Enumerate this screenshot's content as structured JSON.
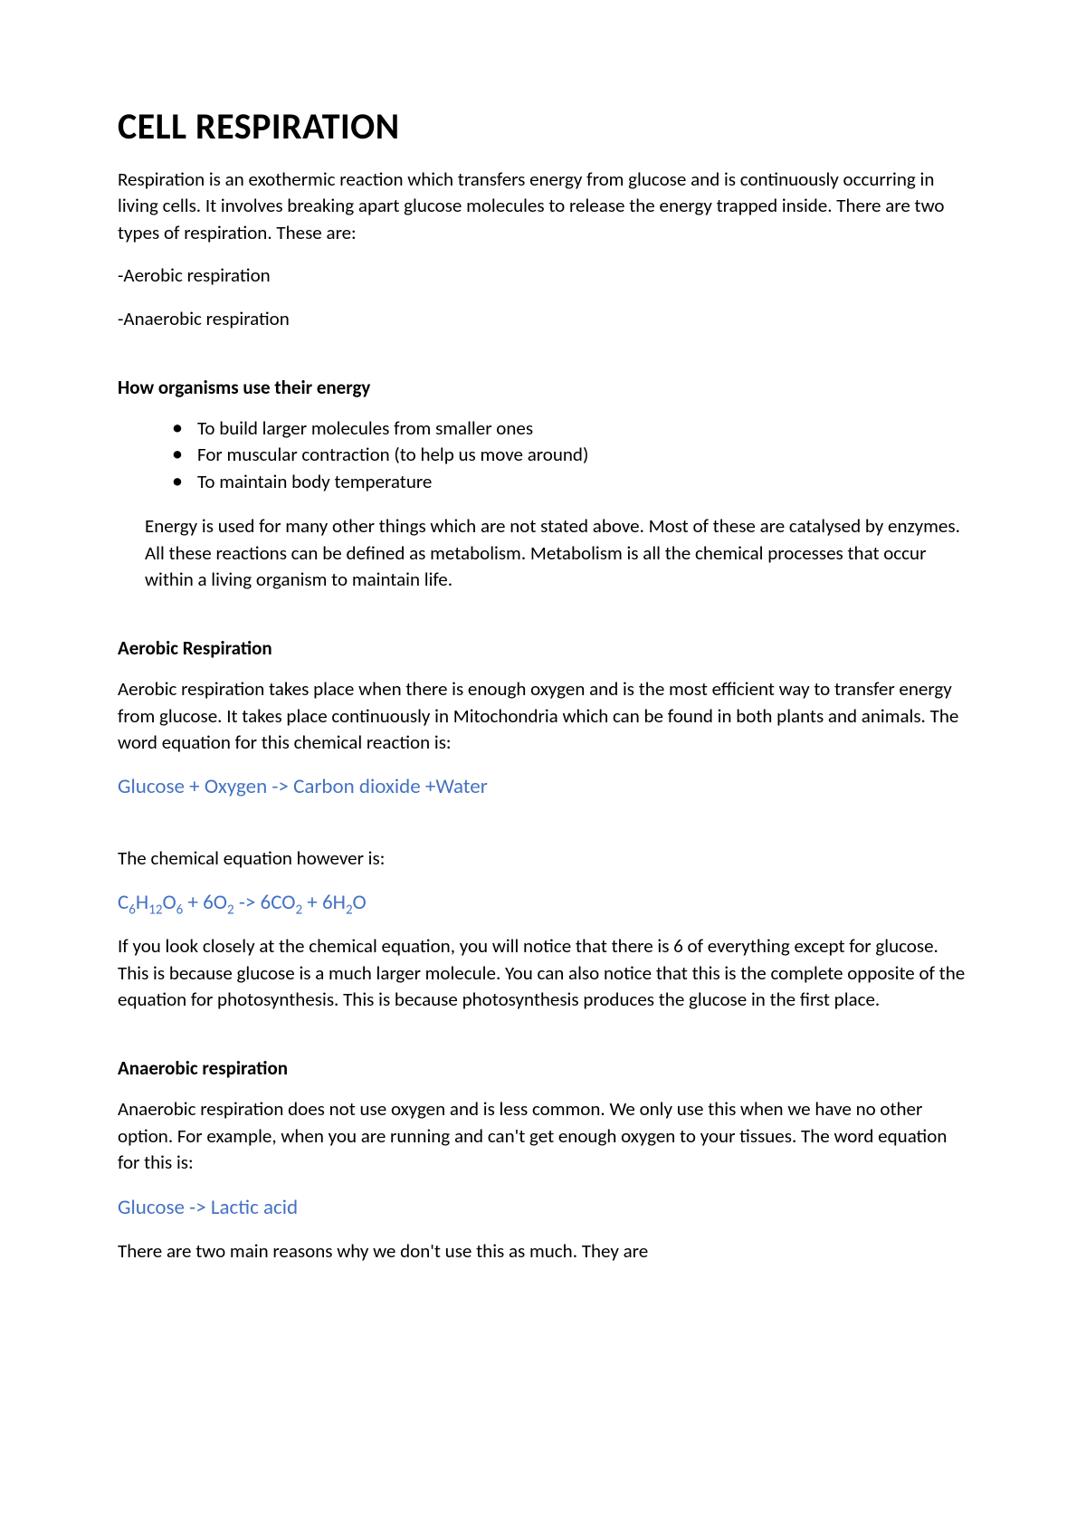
{
  "title": "CELL RESPIRATION",
  "intro": "Respiration is an exothermic reaction which transfers energy from glucose and is continuously occurring in living cells. It involves breaking apart glucose molecules to release the energy trapped inside. There are two types of respiration. These are:",
  "type1": "-Aerobic respiration",
  "type2": "-Anaerobic respiration",
  "section1": {
    "heading": "How organisms use their energy",
    "bullets": [
      "To build larger molecules from smaller ones",
      "For muscular contraction (to help us move around)",
      "To maintain body temperature"
    ],
    "para": "Energy is used for many other things which are not stated above. Most of these are catalysed by enzymes. All these reactions can be defined as metabolism. Metabolism is all the chemical processes that occur within a living organism to maintain life."
  },
  "section2": {
    "heading": "Aerobic Respiration",
    "para1": "Aerobic respiration takes place when there is enough oxygen and is the most efficient way to transfer energy from glucose. It takes place continuously in Mitochondria which can be found in both plants and animals. The word equation for this chemical reaction is:",
    "equation1": "Glucose + Oxygen -> Carbon dioxide +Water",
    "para2": "The chemical equation however is:",
    "para3": "If you look closely at the chemical equation, you will notice that there is 6 of everything except for glucose. This is because glucose is a much larger molecule. You can also notice that this is the complete opposite of the equation for photosynthesis. This is because photosynthesis produces the glucose in the first place."
  },
  "section3": {
    "heading": "Anaerobic respiration",
    "para1": "Anaerobic respiration does not use oxygen and is less common. We only use this when we have no other option. For example, when you are running and can't get enough oxygen to your tissues. The word equation for this is:",
    "equation1": "Glucose -> Lactic acid",
    "para2": "There are two main reasons why we don't use this as much. They are"
  },
  "colors": {
    "text": "#000000",
    "equation": "#4472c4",
    "background": "#ffffff"
  },
  "typography": {
    "title_size": 40,
    "body_size": 21,
    "equation_size": 23,
    "subscript_size": 15,
    "font_family": "Calibri"
  }
}
